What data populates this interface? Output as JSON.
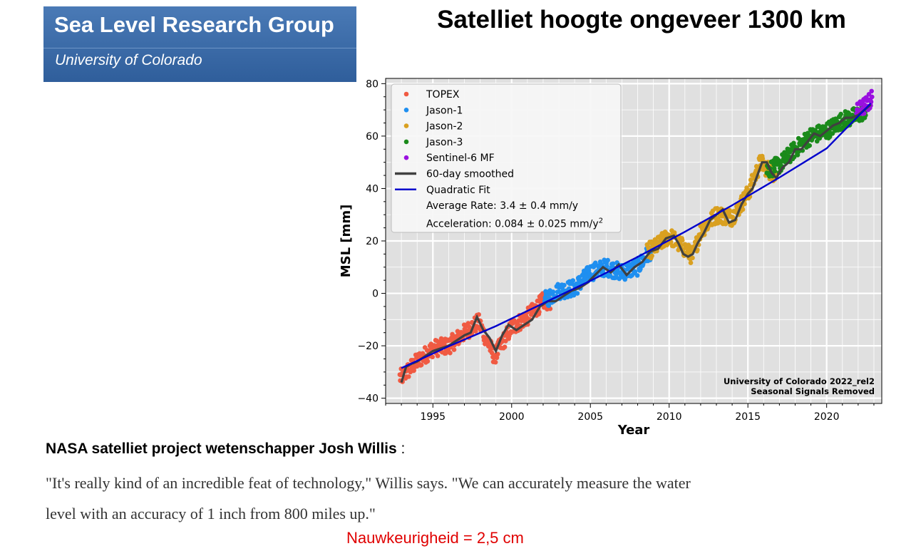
{
  "banner": {
    "title": "Sea Level Research Group",
    "subtitle": "University of Colorado",
    "background": "#3a6aa8"
  },
  "headline": "Satelliet hoogte ongeveer 1300 km",
  "caption": {
    "speaker": "NASA satelliet project wetenschapper Josh Willis",
    "colon": " :",
    "quote": "\"It's really kind of an incredible feat of technology,\" Willis says. \"We can accurately measure the water level with an accuracy of 1 inch from 800 miles up.\"",
    "accuracy": "Nauwkeurigheid = 2,5 cm",
    "accuracy_color": "#e00000"
  },
  "chart_data": {
    "type": "scatter",
    "xlabel": "Year",
    "ylabel": "MSL [mm]",
    "xlim": [
      1992,
      2023.5
    ],
    "ylim": [
      -42,
      82
    ],
    "x_ticks": [
      1995,
      2000,
      2005,
      2010,
      2015,
      2020
    ],
    "y_ticks": [
      -40,
      -20,
      0,
      20,
      40,
      60,
      80
    ],
    "grid": true,
    "legend_position": "top-left",
    "series": [
      {
        "name": "TOPEX",
        "color": "#f05a42",
        "x_range": [
          1992.9,
          2002.5
        ],
        "x": [
          1993,
          1994,
          1995,
          1996,
          1997,
          1997.9,
          1998.9,
          2000,
          2001,
          2002
        ],
        "y": [
          -32,
          -26,
          -21,
          -20,
          -15,
          -11,
          -24,
          -13,
          -9,
          -3
        ]
      },
      {
        "name": "Jason-1",
        "color": "#1f8ff0",
        "x_range": [
          2002.1,
          2008.9
        ],
        "x": [
          2002,
          2003,
          2004,
          2005,
          2006,
          2007,
          2008,
          2008.8
        ],
        "y": [
          -3,
          1,
          2,
          8,
          10,
          8,
          10,
          16
        ]
      },
      {
        "name": "Jason-2",
        "color": "#d9a020",
        "x_range": [
          2008.6,
          2016.8
        ],
        "x": [
          2008.6,
          2009,
          2010,
          2010.8,
          2011.5,
          2012,
          2013,
          2014,
          2015,
          2015.8,
          2016.5
        ],
        "y": [
          16,
          17,
          22,
          18,
          14,
          24,
          30,
          29,
          38,
          50,
          46
        ]
      },
      {
        "name": "Jason-3",
        "color": "#1a8a1a",
        "x_range": [
          2016.2,
          2022.5
        ],
        "x": [
          2016.2,
          2017,
          2018,
          2019,
          2020,
          2021,
          2022,
          2022.5
        ],
        "y": [
          47,
          49,
          55,
          60,
          62,
          66,
          68,
          70
        ]
      },
      {
        "name": "Sentinel-6 MF",
        "color": "#9a10e0",
        "x_range": [
          2021.9,
          2022.9
        ],
        "x": [
          2021.9,
          2022.3,
          2022.7,
          2022.9
        ],
        "y": [
          69,
          71,
          73,
          75
        ]
      }
    ],
    "smoothed": {
      "name": "60-day smoothed",
      "color": "#404040",
      "x": [
        1993,
        1993.3,
        1993.6,
        1994,
        1994.5,
        1995,
        1995.5,
        1996,
        1996.5,
        1997,
        1997.4,
        1997.8,
        1998.2,
        1998.6,
        1999,
        1999.4,
        1999.8,
        2000.3,
        2000.8,
        2001.3,
        2001.8,
        2002.3,
        2002.8,
        2003.3,
        2003.8,
        2004.3,
        2004.8,
        2005.3,
        2005.8,
        2006.3,
        2006.8,
        2007.3,
        2007.8,
        2008.3,
        2008.8,
        2009.3,
        2009.8,
        2010.3,
        2010.6,
        2010.9,
        2011.2,
        2011.5,
        2011.8,
        2012.2,
        2012.6,
        2013,
        2013.4,
        2013.8,
        2014.2,
        2014.6,
        2015,
        2015.3,
        2015.6,
        2015.9,
        2016.2,
        2016.5,
        2016.8,
        2017.2,
        2017.6,
        2018,
        2018.4,
        2018.8,
        2019.2,
        2019.6,
        2020,
        2020.4,
        2020.8,
        2021.2,
        2021.6,
        2022,
        2022.4,
        2022.8
      ],
      "y": [
        -34,
        -28,
        -27,
        -26,
        -24,
        -22,
        -21,
        -20,
        -18,
        -16,
        -15,
        -9,
        -14,
        -17,
        -22,
        -16,
        -12,
        -14,
        -12,
        -10,
        -5,
        -3,
        -3,
        -1,
        1,
        2,
        4,
        7,
        10,
        8,
        11,
        7,
        10,
        12,
        16,
        17,
        21,
        22,
        19,
        15,
        14,
        15,
        19,
        23,
        28,
        30,
        32,
        27,
        28,
        34,
        38,
        40,
        45,
        50,
        50,
        46,
        44,
        48,
        50,
        55,
        55,
        58,
        61,
        60,
        62,
        64,
        65,
        67,
        67,
        68,
        70,
        72
      ]
    },
    "fit": {
      "name": "Quadratic Fit",
      "color": "#0000cc",
      "x": [
        1993,
        1996,
        1999,
        2002,
        2005,
        2008,
        2011,
        2014,
        2017,
        2020,
        2022.8
      ],
      "y": [
        -28.5,
        -20.2,
        -12.5,
        -3.8,
        4.8,
        13.9,
        23.5,
        33.6,
        44.2,
        55.3,
        72.5
      ]
    },
    "legend_text": {
      "rate": "Average Rate: 3.4 ± 0.4 mm/y",
      "accel": "Acceleration: 0.084 ± 0.025 mm/y",
      "accel_sup": "2"
    },
    "annotation": [
      "University of Colorado 2022_rel2",
      "Seasonal Signals Removed"
    ],
    "plot_background": "#e0e0e0"
  }
}
